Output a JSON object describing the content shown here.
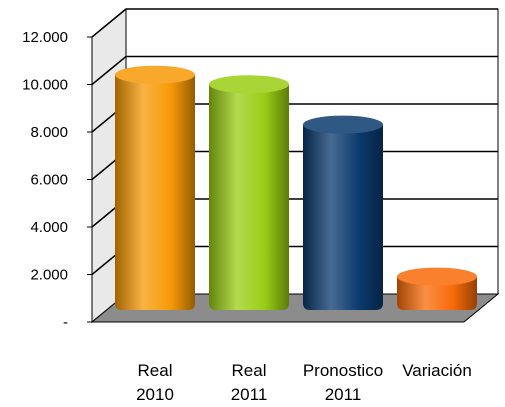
{
  "chart_data": {
    "type": "bar",
    "title": "",
    "xlabel": "",
    "ylabel": "",
    "categories": [
      [
        "Real",
        "2010"
      ],
      [
        "Real",
        "2011"
      ],
      [
        "Pronostico",
        "2011"
      ],
      [
        "Variación"
      ]
    ],
    "values": [
      10200,
      9800,
      8100,
      1700
    ],
    "ylim": [
      0,
      12000
    ],
    "yticks": [
      {
        "value": 0,
        "label": "-"
      },
      {
        "value": 2000,
        "label": "2.000"
      },
      {
        "value": 4000,
        "label": "4.000"
      },
      {
        "value": 6000,
        "label": "6.000"
      },
      {
        "value": 8000,
        "label": "8.000"
      },
      {
        "value": 10000,
        "label": "10.000"
      },
      {
        "value": 12000,
        "label": "12.000"
      }
    ],
    "grid": true,
    "legend": "none",
    "colors": {
      "bars": [
        "#f79a05",
        "#9acd14",
        "#0b3a6e",
        "#f86a08"
      ],
      "back_wall": "#ffffff",
      "floor": "#8c8c8c",
      "side_wall": "#e9e9e9",
      "grid": "#000000"
    }
  }
}
